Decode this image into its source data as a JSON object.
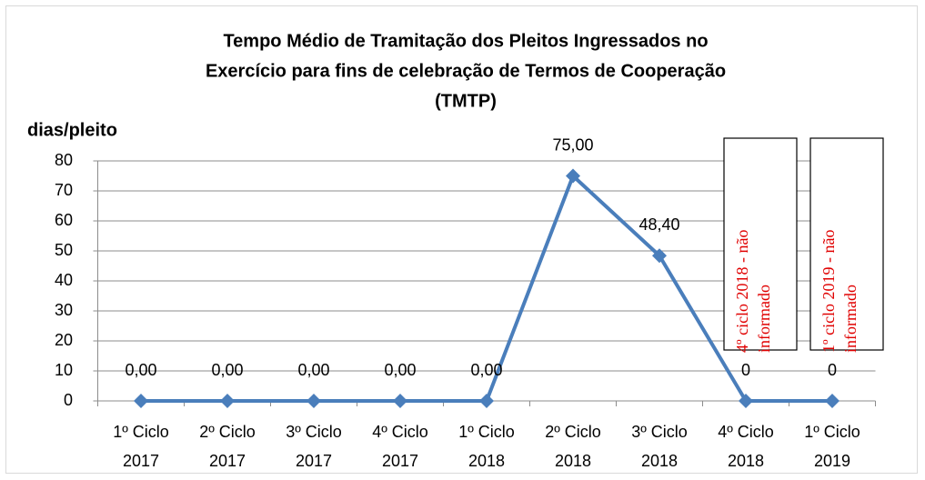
{
  "chart_data": {
    "type": "line",
    "title": [
      "Tempo Médio de Tramitação dos Pleitos Ingressados no",
      "Exercício para fins de celebração de Termos de Cooperação",
      "(TMTP)"
    ],
    "y_label": "dias/pleito",
    "categories": [
      [
        "1º Ciclo",
        "2017"
      ],
      [
        "2º Ciclo",
        "2017"
      ],
      [
        "3º Ciclo",
        "2017"
      ],
      [
        "4º Ciclo",
        "2017"
      ],
      [
        "1º Ciclo",
        "2018"
      ],
      [
        "2º Ciclo",
        "2018"
      ],
      [
        "3º Ciclo",
        "2018"
      ],
      [
        "4º Ciclo",
        "2018"
      ],
      [
        "1º Ciclo",
        "2019"
      ]
    ],
    "series": [
      {
        "name": "TMTP",
        "color": "#4a7ebb",
        "values": [
          0,
          0,
          0,
          0,
          0,
          75,
          48.4,
          0,
          0
        ],
        "value_labels": [
          "0,00",
          "0,00",
          "0,00",
          "0,00",
          "0,00",
          "75,00",
          "48,40",
          "0",
          "0"
        ]
      }
    ],
    "ylim": [
      0,
      80
    ],
    "yticks": [
      0,
      10,
      20,
      30,
      40,
      50,
      60,
      70,
      80
    ],
    "grid": true,
    "annotations": [
      {
        "category": 7,
        "lines": [
          "4º ciclo 2018 - não",
          "informado"
        ]
      },
      {
        "category": 8,
        "lines": [
          "1º ciclo 2019 - não",
          "informado"
        ]
      }
    ]
  }
}
